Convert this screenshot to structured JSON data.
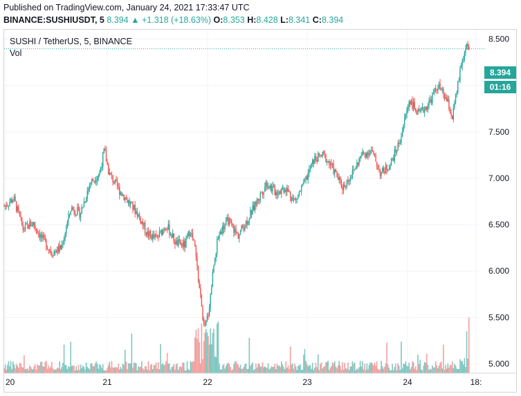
{
  "header": {
    "published": "Published on TradingView.com, January 24, 2021 17:33:47 UTC",
    "symbol": "BINANCE:SUSHIUSDT, 5",
    "last": "8.394",
    "change_arrow": "▲",
    "change": "+1.318 (+18.63%)",
    "open_label": "O:",
    "open": "8.353",
    "high_label": "H:",
    "high": "8.428",
    "low_label": "L:",
    "low": "8.341",
    "close_label": "C:",
    "close": "8.394"
  },
  "legend": {
    "title": "SUSHI / TetherUS, 5, BINANCE",
    "vol_label": "Vol"
  },
  "price_tag": {
    "value": "8.394",
    "countdown": "01:16"
  },
  "colors": {
    "up": "#26a69a",
    "down": "#ef5350",
    "up_vol": "#7fc7c0",
    "down_vol": "#f2a19f",
    "grid": "#f0f3fa",
    "tag": "#26a69a"
  },
  "chart_data": {
    "type": "candlestick",
    "y_ticks": [
      "8.500",
      "8.000",
      "7.500",
      "7.000",
      "6.500",
      "6.000",
      "5.500",
      "5.000"
    ],
    "ylim": [
      4.9,
      8.6
    ],
    "x_ticks": [
      "20",
      "21",
      "22",
      "23",
      "24",
      "18:"
    ],
    "last_price": 8.394,
    "series": [
      {
        "name": "price",
        "close_path": [
          [
            0.0,
            6.7
          ],
          [
            0.02,
            6.78
          ],
          [
            0.04,
            6.45
          ],
          [
            0.06,
            6.52
          ],
          [
            0.08,
            6.35
          ],
          [
            0.1,
            6.2
          ],
          [
            0.12,
            6.25
          ],
          [
            0.14,
            6.68
          ],
          [
            0.16,
            6.62
          ],
          [
            0.18,
            6.95
          ],
          [
            0.2,
            7.05
          ],
          [
            0.21,
            7.3
          ],
          [
            0.22,
            7.05
          ],
          [
            0.24,
            6.88
          ],
          [
            0.26,
            6.75
          ],
          [
            0.28,
            6.62
          ],
          [
            0.3,
            6.4
          ],
          [
            0.32,
            6.35
          ],
          [
            0.34,
            6.5
          ],
          [
            0.36,
            6.3
          ],
          [
            0.38,
            6.28
          ],
          [
            0.39,
            6.45
          ],
          [
            0.4,
            6.25
          ],
          [
            0.41,
            5.8
          ],
          [
            0.42,
            5.35
          ],
          [
            0.43,
            5.6
          ],
          [
            0.44,
            6.1
          ],
          [
            0.45,
            6.4
          ],
          [
            0.47,
            6.55
          ],
          [
            0.49,
            6.38
          ],
          [
            0.51,
            6.55
          ],
          [
            0.53,
            6.75
          ],
          [
            0.55,
            6.95
          ],
          [
            0.57,
            6.85
          ],
          [
            0.59,
            6.9
          ],
          [
            0.61,
            6.75
          ],
          [
            0.63,
            6.95
          ],
          [
            0.65,
            7.2
          ],
          [
            0.67,
            7.25
          ],
          [
            0.69,
            7.1
          ],
          [
            0.71,
            6.9
          ],
          [
            0.73,
            7.05
          ],
          [
            0.75,
            7.25
          ],
          [
            0.77,
            7.3
          ],
          [
            0.79,
            7.05
          ],
          [
            0.81,
            7.15
          ],
          [
            0.83,
            7.4
          ],
          [
            0.85,
            7.85
          ],
          [
            0.87,
            7.68
          ],
          [
            0.89,
            7.8
          ],
          [
            0.91,
            8.0
          ],
          [
            0.93,
            7.82
          ],
          [
            0.94,
            7.65
          ],
          [
            0.95,
            7.95
          ],
          [
            0.96,
            8.25
          ],
          [
            0.97,
            8.4
          ],
          [
            0.975,
            8.394
          ]
        ]
      }
    ]
  }
}
